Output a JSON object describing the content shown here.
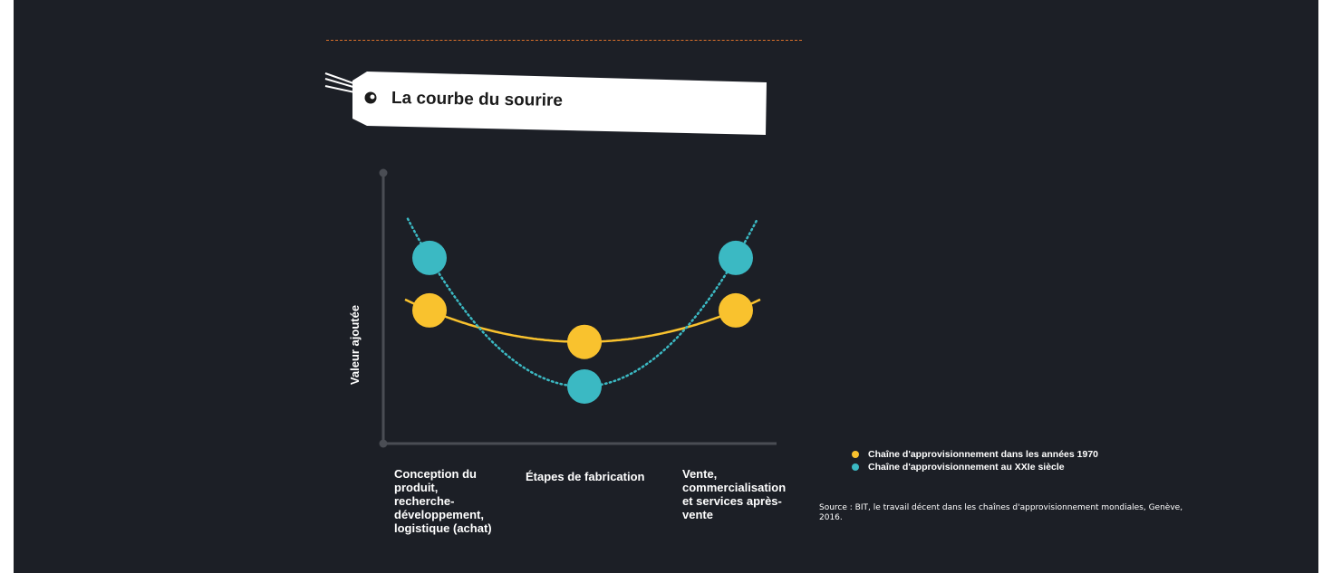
{
  "title": "La courbe du sourire",
  "colors": {
    "background": "#1c1f26",
    "series_1970": "#f9c22e",
    "series_xxi": "#3bb9c3",
    "dash_accent": "#d96f2a"
  },
  "chart_data": {
    "type": "line",
    "title": "La courbe du sourire",
    "ylabel": "Valeur ajoutée",
    "xlabel": "",
    "categories": [
      "Conception du produit, recherche-développement, logistique (achat)",
      "Étapes de fabrication",
      "Vente, commercialisation et services après-vente"
    ],
    "ylim": [
      0,
      100
    ],
    "series": [
      {
        "name": "Chaîne d'approvisionnement dans les années 1970",
        "style": "solid",
        "values": [
          49,
          37,
          49
        ]
      },
      {
        "name": "Chaîne d'approvisionnement au XXIe siècle",
        "style": "dotted",
        "values": [
          69,
          20,
          69
        ]
      }
    ],
    "grid": false,
    "legend": "bottom-right"
  },
  "source": "Source :  BIT, le travail décent dans les chaînes d'approvisionnement mondiales, Genève, 2016."
}
